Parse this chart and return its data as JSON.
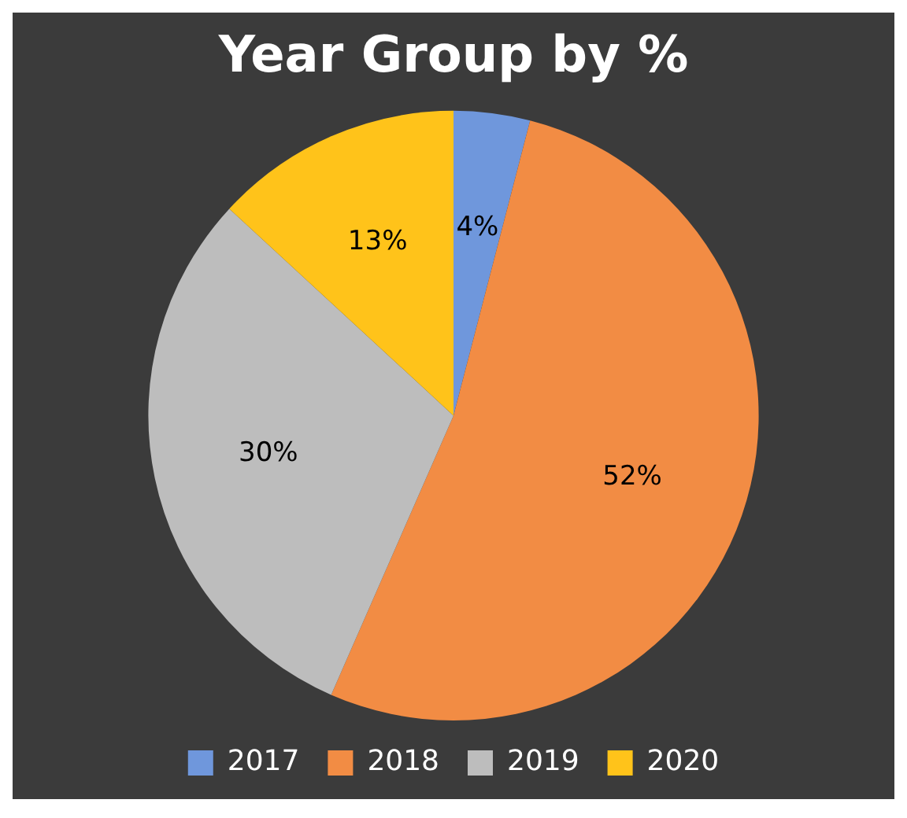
{
  "chart_data": {
    "type": "pie",
    "title": "Year Group by %",
    "categories": [
      "2017",
      "2018",
      "2019",
      "2020"
    ],
    "values": [
      4,
      52,
      30,
      13
    ],
    "colors": [
      "#6f97dc",
      "#f28c44",
      "#bdbdbd",
      "#ffc31a"
    ],
    "value_labels": [
      "4%",
      "52%",
      "30%",
      "13%"
    ],
    "legend": "bottom"
  }
}
